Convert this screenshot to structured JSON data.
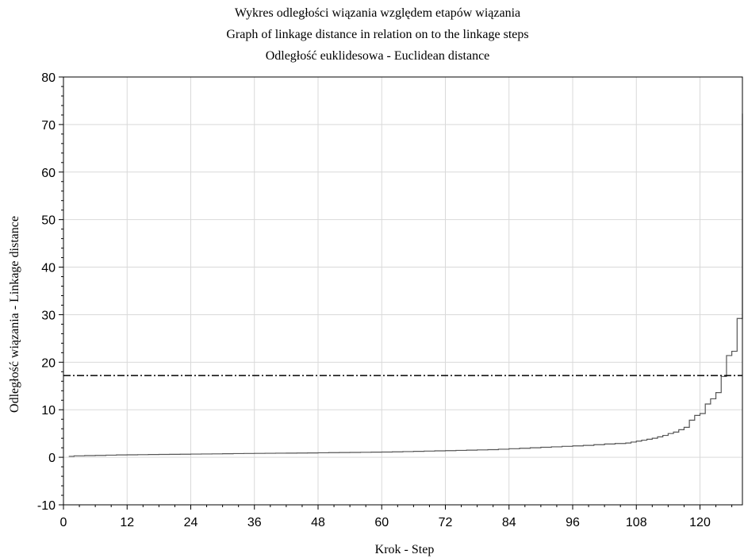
{
  "chart_data": {
    "type": "line",
    "title": "Wykres odległości wiązania względem etapów wiązania",
    "subtitle": "Graph of linkage distance in relation on to the linkage steps",
    "subtitle2": "Odległość euklidesowa - Euclidean distance",
    "xlabel": "Krok - Step",
    "ylabel": "Odległość wiązania - Linkage distance",
    "xlim": [
      0,
      128
    ],
    "ylim": [
      -10,
      80
    ],
    "xticks": [
      "0",
      "12",
      "24",
      "36",
      "48",
      "60",
      "72",
      "84",
      "96",
      "108",
      "120"
    ],
    "yticks": [
      "80",
      "70",
      "60",
      "50",
      "40",
      "30",
      "20",
      "10",
      "0",
      "-10"
    ],
    "grid": true,
    "series": [
      {
        "style": "step",
        "color": "#555555",
        "x": [
          1,
          2,
          4,
          6,
          8,
          10,
          12,
          14,
          16,
          18,
          20,
          22,
          24,
          26,
          28,
          30,
          32,
          34,
          36,
          38,
          40,
          42,
          44,
          46,
          48,
          50,
          52,
          54,
          56,
          58,
          60,
          62,
          64,
          66,
          68,
          70,
          72,
          74,
          76,
          78,
          80,
          82,
          84,
          86,
          88,
          90,
          92,
          94,
          96,
          98,
          100,
          102,
          104,
          106,
          107,
          108,
          109,
          110,
          111,
          112,
          113,
          114,
          115,
          116,
          117,
          118,
          119,
          120,
          121,
          122,
          123,
          124,
          125,
          126,
          127,
          128
        ],
        "y": [
          0.2,
          0.3,
          0.35,
          0.4,
          0.45,
          0.5,
          0.52,
          0.55,
          0.58,
          0.6,
          0.62,
          0.65,
          0.68,
          0.7,
          0.72,
          0.75,
          0.78,
          0.8,
          0.82,
          0.84,
          0.86,
          0.88,
          0.9,
          0.92,
          0.95,
          0.98,
          1.0,
          1.02,
          1.05,
          1.08,
          1.1,
          1.15,
          1.2,
          1.25,
          1.3,
          1.35,
          1.4,
          1.45,
          1.5,
          1.55,
          1.6,
          1.7,
          1.8,
          1.9,
          2.0,
          2.1,
          2.2,
          2.3,
          2.4,
          2.5,
          2.65,
          2.8,
          2.9,
          3.0,
          3.2,
          3.4,
          3.6,
          3.8,
          4.0,
          4.3,
          4.6,
          5.0,
          5.3,
          5.8,
          6.3,
          7.8,
          8.8,
          9.2,
          11.2,
          12.3,
          13.6,
          17.0,
          21.4,
          22.3,
          29.2,
          72.3
        ]
      },
      {
        "style": "dash-dot",
        "color": "#000000",
        "x": [
          0,
          128
        ],
        "y": [
          17.2,
          17.2
        ]
      }
    ]
  }
}
